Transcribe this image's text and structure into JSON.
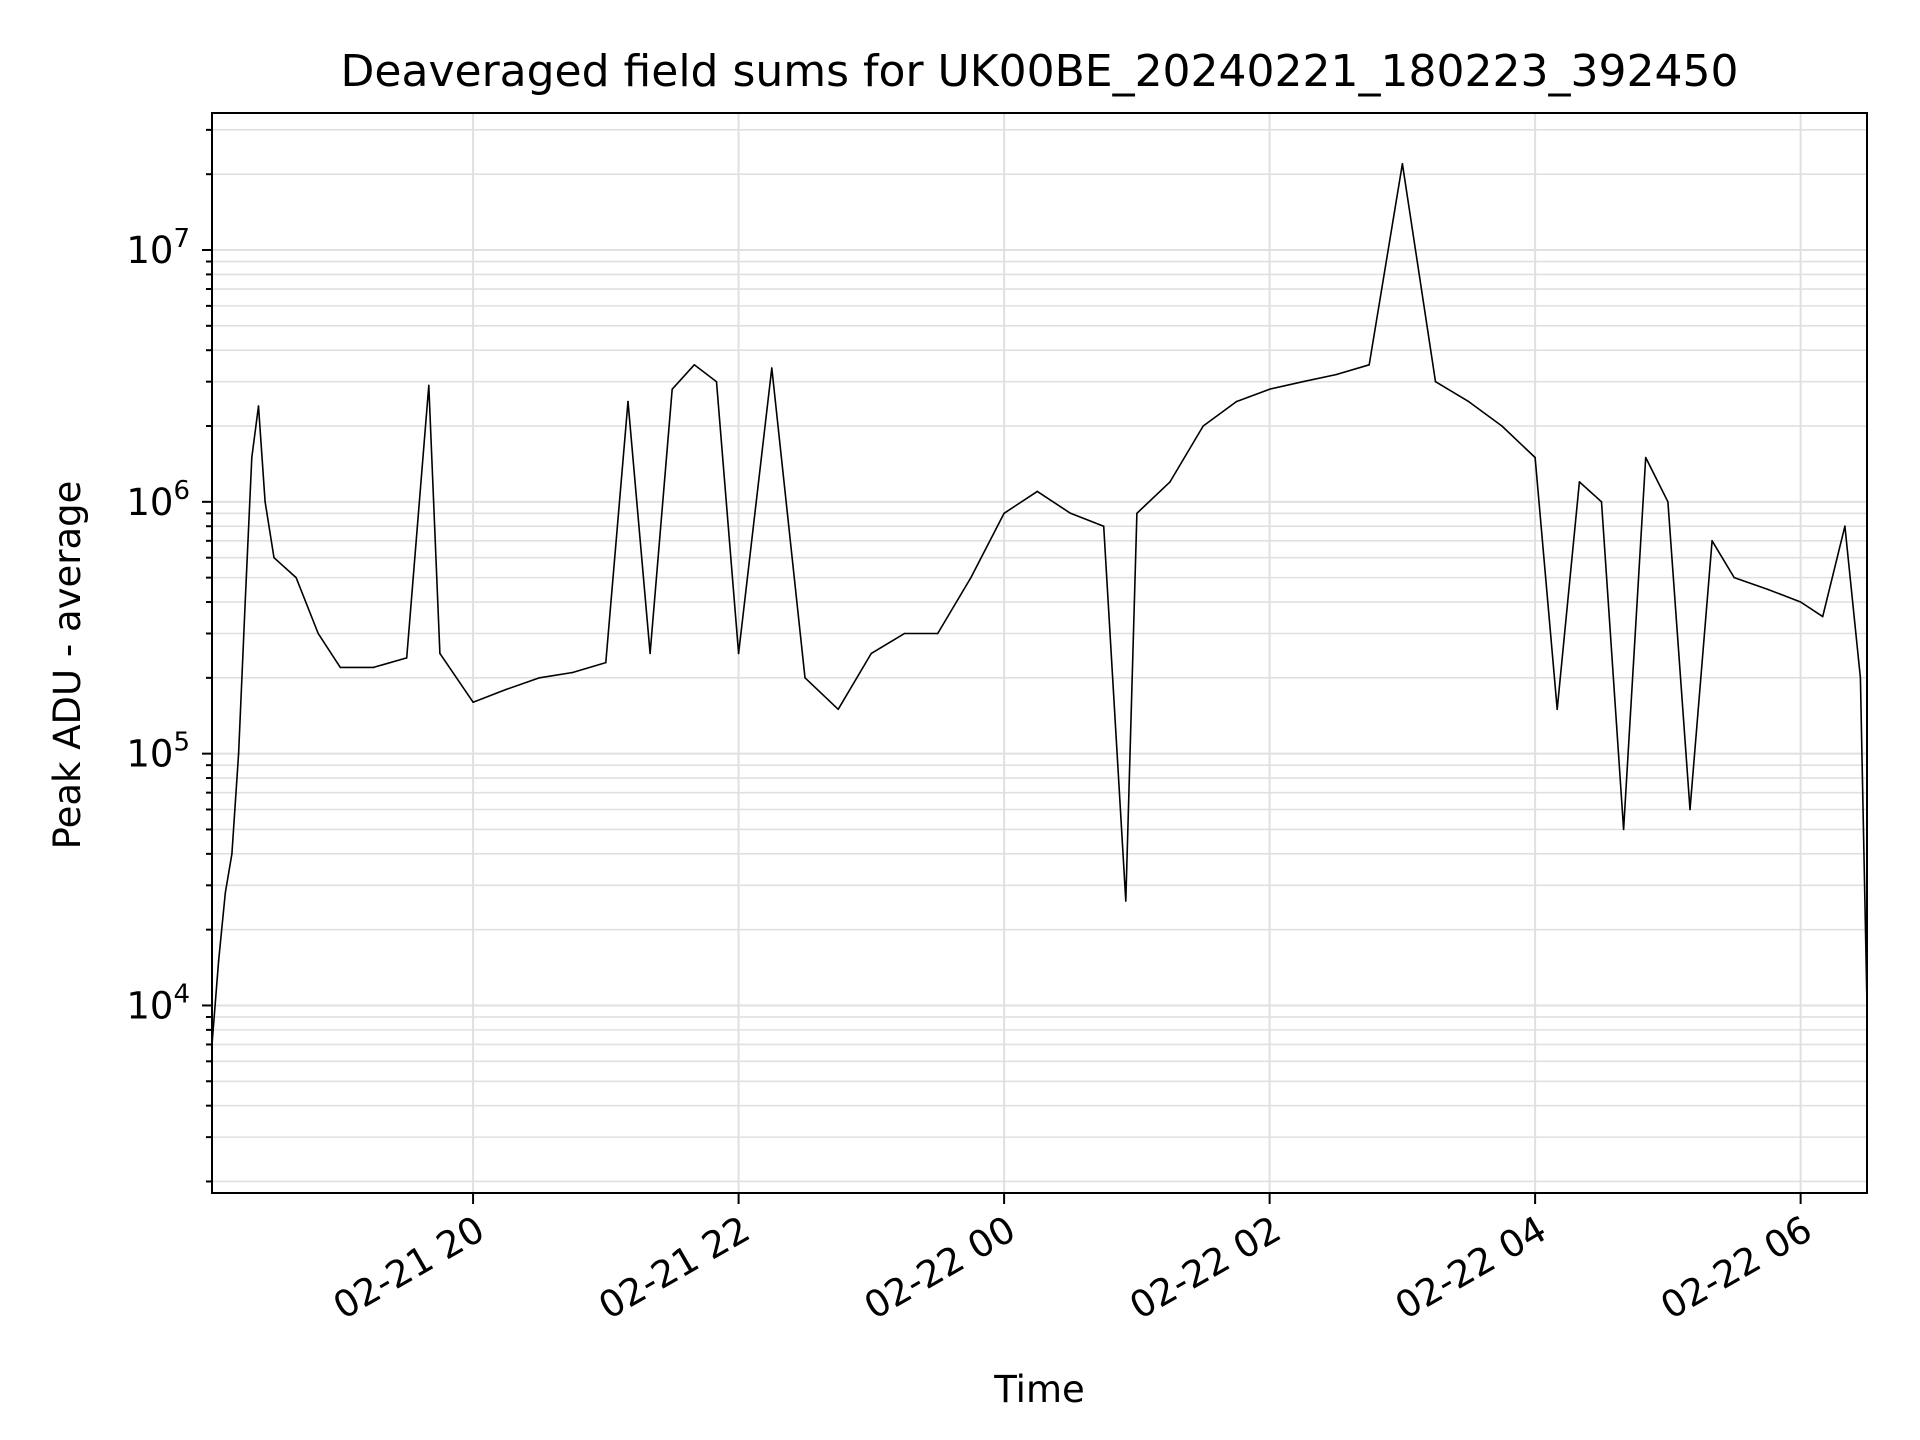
{
  "chart_data": {
    "type": "line",
    "title": "Deaveraged field sums for UK00BE_20240221_180223_392450",
    "xlabel": "Time",
    "ylabel": "Peak ADU - average",
    "yscale": "log",
    "ylim": [
      1800,
      35000000
    ],
    "xlim": [
      "2024-02-21 18:02",
      "2024-02-22 06:30"
    ],
    "grid": true,
    "line_color": "#000000",
    "grid_color": "#e0e0e0",
    "x_ticks": [
      {
        "value": "2024-02-21 20:00",
        "label": "02-21 20"
      },
      {
        "value": "2024-02-21 22:00",
        "label": "02-21 22"
      },
      {
        "value": "2024-02-22 00:00",
        "label": "02-22 00"
      },
      {
        "value": "2024-02-22 02:00",
        "label": "02-22 02"
      },
      {
        "value": "2024-02-22 04:00",
        "label": "02-22 04"
      },
      {
        "value": "2024-02-22 06:00",
        "label": "02-22 06"
      }
    ],
    "y_ticks": [
      {
        "value": 10000,
        "base": "10",
        "exp": "4"
      },
      {
        "value": 100000,
        "base": "10",
        "exp": "5"
      },
      {
        "value": 1000000,
        "base": "10",
        "exp": "6"
      },
      {
        "value": 10000000,
        "base": "10",
        "exp": "7"
      }
    ],
    "series": [
      {
        "points": [
          [
            "2024-02-21 18:02",
            7000
          ],
          [
            "2024-02-21 18:05",
            15000
          ],
          [
            "2024-02-21 18:08",
            28000
          ],
          [
            "2024-02-21 18:11",
            40000
          ],
          [
            "2024-02-21 18:14",
            100000
          ],
          [
            "2024-02-21 18:17",
            400000
          ],
          [
            "2024-02-21 18:20",
            1500000
          ],
          [
            "2024-02-21 18:23",
            2400000
          ],
          [
            "2024-02-21 18:26",
            1000000
          ],
          [
            "2024-02-21 18:30",
            600000
          ],
          [
            "2024-02-21 18:40",
            500000
          ],
          [
            "2024-02-21 18:50",
            300000
          ],
          [
            "2024-02-21 19:00",
            220000
          ],
          [
            "2024-02-21 19:15",
            220000
          ],
          [
            "2024-02-21 19:30",
            240000
          ],
          [
            "2024-02-21 19:40",
            2900000
          ],
          [
            "2024-02-21 19:45",
            250000
          ],
          [
            "2024-02-21 20:00",
            160000
          ],
          [
            "2024-02-21 20:15",
            180000
          ],
          [
            "2024-02-21 20:30",
            200000
          ],
          [
            "2024-02-21 20:45",
            210000
          ],
          [
            "2024-02-21 21:00",
            230000
          ],
          [
            "2024-02-21 21:10",
            2500000
          ],
          [
            "2024-02-21 21:20",
            250000
          ],
          [
            "2024-02-21 21:30",
            2800000
          ],
          [
            "2024-02-21 21:40",
            3500000
          ],
          [
            "2024-02-21 21:50",
            3000000
          ],
          [
            "2024-02-21 22:00",
            250000
          ],
          [
            "2024-02-21 22:15",
            3400000
          ],
          [
            "2024-02-21 22:30",
            200000
          ],
          [
            "2024-02-21 22:45",
            150000
          ],
          [
            "2024-02-21 23:00",
            250000
          ],
          [
            "2024-02-21 23:15",
            300000
          ],
          [
            "2024-02-21 23:30",
            300000
          ],
          [
            "2024-02-21 23:45",
            500000
          ],
          [
            "2024-02-22 00:00",
            900000
          ],
          [
            "2024-02-22 00:15",
            1100000
          ],
          [
            "2024-02-22 00:30",
            900000
          ],
          [
            "2024-02-22 00:45",
            800000
          ],
          [
            "2024-02-22 00:55",
            26000
          ],
          [
            "2024-02-22 01:00",
            900000
          ],
          [
            "2024-02-22 01:15",
            1200000
          ],
          [
            "2024-02-22 01:30",
            2000000
          ],
          [
            "2024-02-22 01:45",
            2500000
          ],
          [
            "2024-02-22 02:00",
            2800000
          ],
          [
            "2024-02-22 02:15",
            3000000
          ],
          [
            "2024-02-22 02:30",
            3200000
          ],
          [
            "2024-02-22 02:45",
            3500000
          ],
          [
            "2024-02-22 03:00",
            22000000
          ],
          [
            "2024-02-22 03:15",
            3000000
          ],
          [
            "2024-02-22 03:30",
            2500000
          ],
          [
            "2024-02-22 03:45",
            2000000
          ],
          [
            "2024-02-22 04:00",
            1500000
          ],
          [
            "2024-02-22 04:10",
            150000
          ],
          [
            "2024-02-22 04:20",
            1200000
          ],
          [
            "2024-02-22 04:30",
            1000000
          ],
          [
            "2024-02-22 04:40",
            50000
          ],
          [
            "2024-02-22 04:50",
            1500000
          ],
          [
            "2024-02-22 05:00",
            1000000
          ],
          [
            "2024-02-22 05:10",
            60000
          ],
          [
            "2024-02-22 05:20",
            700000
          ],
          [
            "2024-02-22 05:30",
            500000
          ],
          [
            "2024-02-22 05:45",
            450000
          ],
          [
            "2024-02-22 06:00",
            400000
          ],
          [
            "2024-02-22 06:10",
            350000
          ],
          [
            "2024-02-22 06:20",
            800000
          ],
          [
            "2024-02-22 06:27",
            200000
          ],
          [
            "2024-02-22 06:30",
            10000
          ]
        ]
      }
    ]
  }
}
